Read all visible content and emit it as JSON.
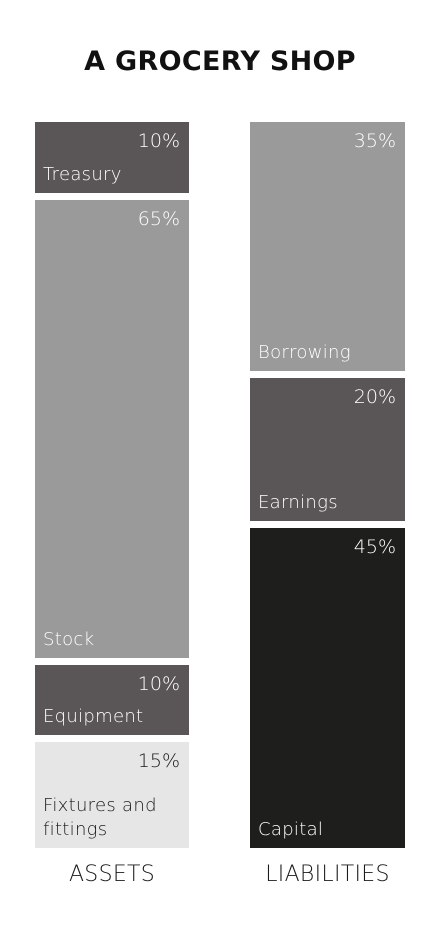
{
  "chart_data": {
    "type": "stacked-bar",
    "title": "A GROCERY SHOP",
    "categories": [
      "ASSETS",
      "LIABILITIES"
    ],
    "stacks": [
      {
        "category": "ASSETS",
        "segments": [
          {
            "name": "Treasury",
            "value": 10,
            "label": "10%",
            "color": "#5a5657",
            "text_color": "#ffffff"
          },
          {
            "name": "Stock",
            "value": 65,
            "label": "65%",
            "color": "#9a9a9a",
            "text_color": "#ffffff"
          },
          {
            "name": "Equipment",
            "value": 10,
            "label": "10%",
            "color": "#5a5657",
            "text_color": "#ffffff"
          },
          {
            "name": "Fixtures and fittings",
            "value": 15,
            "label": "15%",
            "color": "#e6e6e6",
            "text_color": "#1a1a1a"
          }
        ]
      },
      {
        "category": "LIABILITIES",
        "segments": [
          {
            "name": "Borrowing",
            "value": 35,
            "label": "35%",
            "color": "#9a9a9a",
            "text_color": "#ffffff"
          },
          {
            "name": "Earnings",
            "value": 20,
            "label": "20%",
            "color": "#5a5657",
            "text_color": "#ffffff"
          },
          {
            "name": "Capital",
            "value": 45,
            "label": "45%",
            "color": "#1e1e1c",
            "text_color": "#ffffff"
          }
        ]
      }
    ]
  }
}
